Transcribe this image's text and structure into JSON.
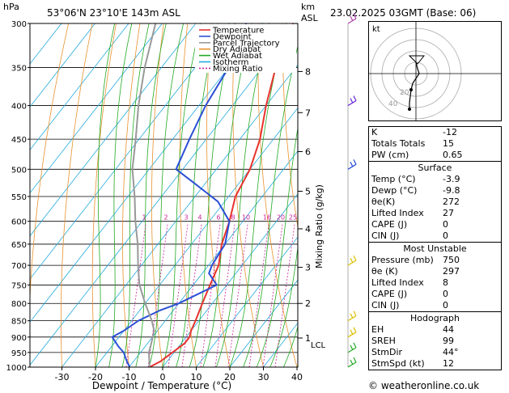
{
  "header": {
    "pressure_unit": "hPa",
    "location": "53°06'N  23°10'E  143m  ASL",
    "height_unit_km": "km",
    "height_unit_asl": "ASL",
    "datetime": "23.02.2025  03GMT  (Base: 06)"
  },
  "legend": {
    "items": [
      {
        "label": "Temperature",
        "color": "#e8332e",
        "style": "solid"
      },
      {
        "label": "Dewpoint",
        "color": "#2b4fd6",
        "style": "solid"
      },
      {
        "label": "Parcel Trajectory",
        "color": "#999999",
        "style": "solid"
      },
      {
        "label": "Dry Adiabat",
        "color": "#e8922e",
        "style": "solid"
      },
      {
        "label": "Wet Adiabat",
        "color": "#22aa22",
        "style": "solid"
      },
      {
        "label": "Isotherm",
        "color": "#22aadd",
        "style": "solid"
      },
      {
        "label": "Mixing Ratio",
        "color": "#cc2299",
        "style": "dotted"
      }
    ]
  },
  "chart_data": {
    "type": "line",
    "xlabel": "Dewpoint / Temperature (°C)",
    "ylabel": "",
    "secondary_ylabel": "Mixing Ratio (g/kg)",
    "x_ticks": [
      -30,
      -20,
      -10,
      0,
      10,
      20,
      30,
      40
    ],
    "pressure_levels": [
      300,
      350,
      400,
      450,
      500,
      550,
      600,
      650,
      700,
      750,
      800,
      850,
      900,
      950,
      1000
    ],
    "height_km_ticks": [
      {
        "label": "8",
        "p": 355
      },
      {
        "label": "7",
        "p": 410
      },
      {
        "label": "6",
        "p": 470
      },
      {
        "label": "5",
        "p": 540
      },
      {
        "label": "4",
        "p": 616
      },
      {
        "label": "3",
        "p": 705
      },
      {
        "label": "2",
        "p": 800
      },
      {
        "label": "1",
        "p": 903
      }
    ],
    "lcl": {
      "label": "LCL",
      "p": 918
    },
    "mixing_ratio_labels": [
      1,
      2,
      3,
      4,
      6,
      8,
      10,
      16,
      20,
      25
    ],
    "series": [
      {
        "name": "Temperature",
        "color": "#e8332e",
        "points": [
          [
            -3.9,
            1000
          ],
          [
            -2,
            980
          ],
          [
            -1,
            960
          ],
          [
            0,
            940
          ],
          [
            1,
            920
          ],
          [
            1,
            900
          ],
          [
            0,
            880
          ],
          [
            -1,
            850
          ],
          [
            -3,
            800
          ],
          [
            -5,
            750
          ],
          [
            -7,
            700
          ],
          [
            -11,
            650
          ],
          [
            -14,
            600
          ],
          [
            -18,
            550
          ],
          [
            -20,
            500
          ],
          [
            -24,
            450
          ],
          [
            -30,
            400
          ],
          [
            -36,
            350
          ],
          [
            -41,
            300
          ]
        ]
      },
      {
        "name": "Dewpoint",
        "color": "#2b4fd6",
        "points": [
          [
            -9.8,
            1000
          ],
          [
            -12,
            980
          ],
          [
            -15,
            950
          ],
          [
            -18,
            930
          ],
          [
            -22,
            900
          ],
          [
            -20,
            880
          ],
          [
            -18,
            850
          ],
          [
            -14,
            820
          ],
          [
            -10,
            800
          ],
          [
            -3,
            750
          ],
          [
            -8,
            720
          ],
          [
            -9,
            700
          ],
          [
            -10,
            650
          ],
          [
            -14,
            600
          ],
          [
            -22,
            560
          ],
          [
            -35,
            520
          ],
          [
            -42,
            500
          ],
          [
            -45,
            450
          ],
          [
            -48,
            400
          ],
          [
            -50,
            350
          ],
          [
            -55,
            300
          ]
        ]
      },
      {
        "name": "Parcel Trajectory",
        "color": "#999999",
        "points": [
          [
            -3.9,
            1000
          ],
          [
            -7.5,
            950
          ],
          [
            -9,
            918
          ],
          [
            -11,
            880
          ],
          [
            -14,
            850
          ],
          [
            -20,
            800
          ],
          [
            -26,
            750
          ],
          [
            -31,
            700
          ],
          [
            -36,
            650
          ],
          [
            -42,
            600
          ],
          [
            -48,
            550
          ],
          [
            -55,
            500
          ],
          [
            -61,
            450
          ],
          [
            -68,
            400
          ],
          [
            -75,
            350
          ],
          [
            -82,
            300
          ]
        ]
      }
    ]
  },
  "indices": [
    {
      "label": "K",
      "value": "-12"
    },
    {
      "label": "Totals Totals",
      "value": "15"
    },
    {
      "label": "PW (cm)",
      "value": "0.65"
    }
  ],
  "surface": {
    "title": "Surface",
    "rows": [
      {
        "label": "Temp (°C)",
        "value": "-3.9"
      },
      {
        "label": "Dewp (°C)",
        "value": "-9.8"
      },
      {
        "label": "θe(K)",
        "value": "272"
      },
      {
        "label": "Lifted Index",
        "value": "27"
      },
      {
        "label": "CAPE (J)",
        "value": "0"
      },
      {
        "label": "CIN (J)",
        "value": "0"
      }
    ]
  },
  "most_unstable": {
    "title": "Most Unstable",
    "rows": [
      {
        "label": "Pressure (mb)",
        "value": "750"
      },
      {
        "label": "θe (K)",
        "value": "297"
      },
      {
        "label": "Lifted Index",
        "value": "8"
      },
      {
        "label": "CAPE (J)",
        "value": "0"
      },
      {
        "label": "CIN (J)",
        "value": "0"
      }
    ]
  },
  "hodograph_table": {
    "title": "Hodograph",
    "rows": [
      {
        "label": "EH",
        "value": "44"
      },
      {
        "label": "SREH",
        "value": "99"
      },
      {
        "label": "StmDir",
        "value": "44°"
      },
      {
        "label": "StmSpd (kt)",
        "value": "12"
      }
    ]
  },
  "hodograph": {
    "unit_label": "kt",
    "ring_labels": [
      "20",
      "40"
    ]
  },
  "footer": {
    "copyright": "© weatheronline.co.uk"
  }
}
